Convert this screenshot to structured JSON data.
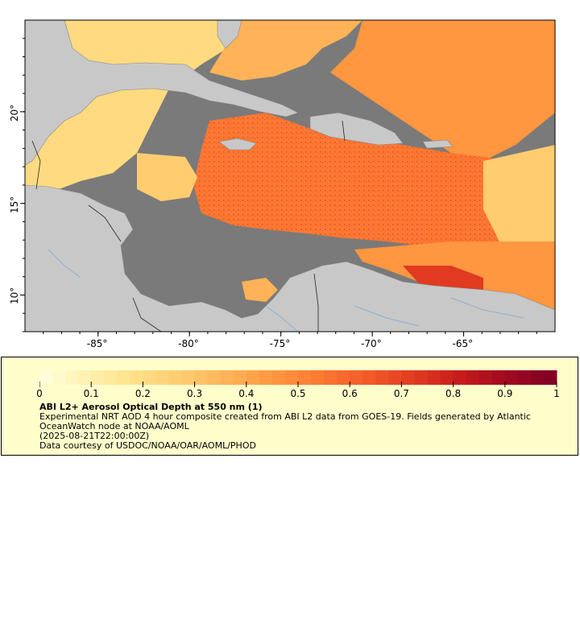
{
  "map": {
    "lon_ticks": [
      {
        "value": -85,
        "label": "-85°"
      },
      {
        "value": -80,
        "label": "-80°"
      },
      {
        "value": -75,
        "label": "-75°"
      },
      {
        "value": -70,
        "label": "-70°"
      },
      {
        "value": -65,
        "label": "-65°"
      }
    ],
    "lat_ticks": [
      {
        "value": 20,
        "label": "20°"
      },
      {
        "value": 15,
        "label": "15°"
      },
      {
        "value": 10,
        "label": "10°"
      }
    ],
    "lon_range": [
      -89.0,
      -60.0
    ],
    "lat_range": [
      8.0,
      25.0
    ],
    "colors": {
      "land": "#c8c8c8",
      "no_data": "#7a7a7a",
      "coast": "#888888",
      "border": "#222222",
      "river": "#7aa6d6"
    }
  },
  "legend": {
    "ticks": [
      "0",
      "0.1",
      "0.2",
      "0.3",
      "0.4",
      "0.5",
      "0.6",
      "0.7",
      "0.8",
      "0.9",
      "1"
    ],
    "title": "ABI L2+ Aerosol Optical Depth at 550 nm (1)",
    "description": "Experimental NRT AOD 4 hour composite created from ABI L2 data from GOES-19. Fields generated by Atlantic OceanWatch node at NOAA/AOML",
    "timestamp": "(2025-08-21T22:00:00Z)",
    "credit": "Data courtesy of USDOC/NOAA/OAR/AOML/PHOD",
    "colormap": [
      "#ffffe0",
      "#fff2b0",
      "#ffe08a",
      "#ffcc70",
      "#ffb257",
      "#ff9640",
      "#fb7832",
      "#f25a28",
      "#e03a20",
      "#c41b1c",
      "#9e0822",
      "#800026"
    ]
  }
}
